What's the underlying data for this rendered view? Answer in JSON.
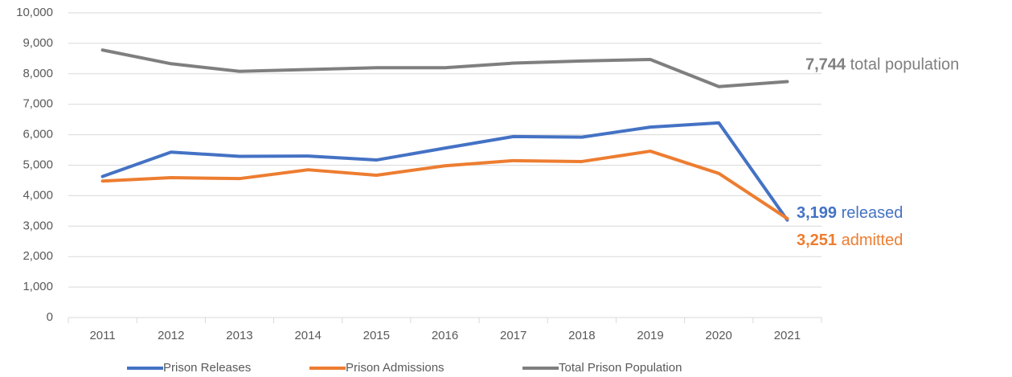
{
  "chart_data": {
    "type": "line",
    "categories": [
      "2011",
      "2012",
      "2013",
      "2014",
      "2015",
      "2016",
      "2017",
      "2018",
      "2019",
      "2020",
      "2021"
    ],
    "series": [
      {
        "name": "Prison Releases",
        "color": "#4472c4",
        "values": [
          4630,
          5430,
          5290,
          5300,
          5170,
          5560,
          5940,
          5920,
          6250,
          6390,
          3199
        ],
        "value_labels": [
          null,
          null,
          null,
          null,
          null,
          null,
          null,
          null,
          null,
          null,
          "3,199"
        ],
        "annotation": "released"
      },
      {
        "name": "Prison Admissions",
        "color": "#ed7d31",
        "values": [
          4480,
          4590,
          4560,
          4850,
          4670,
          4980,
          5150,
          5120,
          5460,
          4730,
          3251
        ],
        "value_labels": [
          null,
          null,
          null,
          null,
          null,
          null,
          null,
          null,
          null,
          null,
          "3,251"
        ],
        "annotation": "admitted"
      },
      {
        "name": "Total Prison Population",
        "color": "#7f7f7f",
        "values": [
          8780,
          8330,
          8080,
          8140,
          8200,
          8200,
          8350,
          8420,
          8470,
          7580,
          7744
        ],
        "value_labels": [
          null,
          null,
          null,
          null,
          null,
          null,
          null,
          null,
          null,
          null,
          "7,744"
        ],
        "annotation": "total population"
      }
    ],
    "ylim": [
      0,
      10000
    ],
    "yticks": [
      0,
      {
        "value": 1000,
        "label": "1,000"
      },
      {
        "value": 2000,
        "label": "2,000"
      },
      {
        "value": 3000,
        "label": "3,000"
      },
      {
        "value": 4000,
        "label": "4,000"
      },
      {
        "value": 5000,
        "label": "5,000"
      },
      {
        "value": 6000,
        "label": "6,000"
      },
      {
        "value": 7000,
        "label": "7,000"
      },
      {
        "value": 8000,
        "label": "8,000"
      },
      {
        "value": 9000,
        "label": "9,000"
      },
      {
        "value": 10000,
        "label": "10,000"
      }
    ],
    "grid": true,
    "legend": "bottom"
  }
}
